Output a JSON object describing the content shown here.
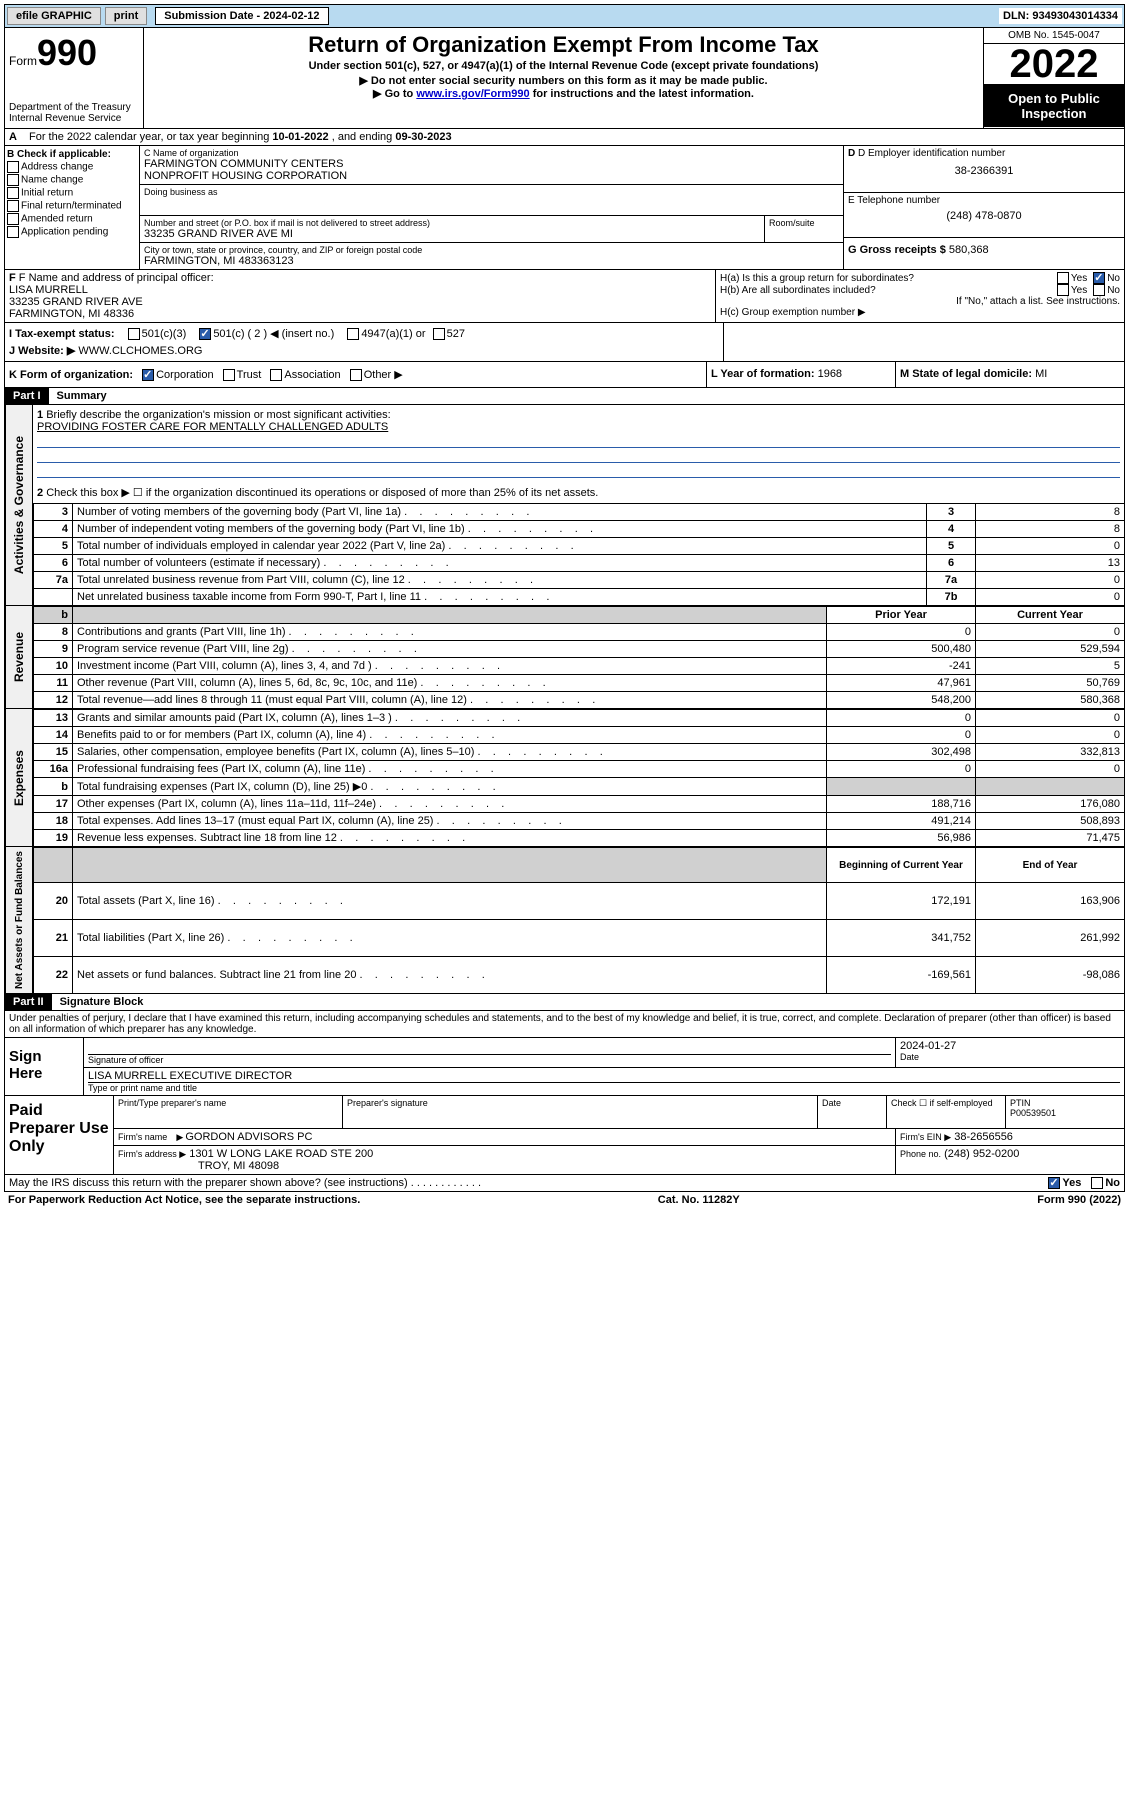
{
  "topbar": {
    "efile": "efile GRAPHIC",
    "print": "print",
    "sub_label": "Submission Date - 2024-02-12",
    "dln": "DLN: 93493043014334"
  },
  "header": {
    "form_word": "Form",
    "form_num": "990",
    "dept": "Department of the Treasury",
    "irs": "Internal Revenue Service",
    "title": "Return of Organization Exempt From Income Tax",
    "subtitle": "Under section 501(c), 527, or 4947(a)(1) of the Internal Revenue Code (except private foundations)",
    "note1": "▶ Do not enter social security numbers on this form as it may be made public.",
    "note2_pre": "▶ Go to ",
    "note2_link": "www.irs.gov/Form990",
    "note2_post": " for instructions and the latest information.",
    "omb": "OMB No. 1545-0047",
    "year": "2022",
    "open": "Open to Public Inspection"
  },
  "periodA": {
    "text_pre": "For the 2022 calendar year, or tax year beginning ",
    "begin": "10-01-2022",
    "mid": " , and ending ",
    "end": "09-30-2023"
  },
  "boxB": {
    "title": "B Check if applicable:",
    "items": [
      "Address change",
      "Name change",
      "Initial return",
      "Final return/terminated",
      "Amended return",
      "Application pending"
    ]
  },
  "boxC": {
    "label_name": "C Name of organization",
    "org1": "FARMINGTON COMMUNITY CENTERS",
    "org2": "NONPROFIT HOUSING CORPORATION",
    "dba": "Doing business as",
    "addr_label": "Number and street (or P.O. box if mail is not delivered to street address)",
    "room": "Room/suite",
    "addr": "33235 GRAND RIVER AVE MI",
    "city_label": "City or town, state or province, country, and ZIP or foreign postal code",
    "city": "FARMINGTON, MI  483363123"
  },
  "boxD": {
    "label": "D Employer identification number",
    "val": "38-2366391"
  },
  "boxE": {
    "label": "E Telephone number",
    "val": "(248) 478-0870"
  },
  "boxG": {
    "label": "G Gross receipts $",
    "val": "580,368"
  },
  "boxF": {
    "label": "F  Name and address of principal officer:",
    "name": "LISA MURRELL",
    "addr1": "33235 GRAND RIVER AVE",
    "addr2": "FARMINGTON, MI  48336"
  },
  "boxH": {
    "a": "H(a)  Is this a group return for subordinates?",
    "b": "H(b)  Are all subordinates included?",
    "note": "If \"No,\" attach a list. See instructions.",
    "c": "H(c)  Group exemption number ▶",
    "yes": "Yes",
    "no": "No"
  },
  "rowI": {
    "label": "I    Tax-exempt status:",
    "c3": "501(c)(3)",
    "c": "501(c) ( 2 ) ◀ (insert no.)",
    "a1": "4947(a)(1) or",
    "s527": "527"
  },
  "rowJ": {
    "label": "J    Website: ▶",
    "val": "WWW.CLCHOMES.ORG"
  },
  "rowK": {
    "label": "K Form of organization:",
    "corp": "Corporation",
    "trust": "Trust",
    "assoc": "Association",
    "other": "Other ▶"
  },
  "rowL": {
    "label": "L Year of formation:",
    "val": "1968"
  },
  "rowM": {
    "label": "M State of legal domicile:",
    "val": "MI"
  },
  "part1": {
    "header": "Part I",
    "title": "Summary",
    "q1": "Briefly describe the organization's mission or most significant activities:",
    "mission": "PROVIDING FOSTER CARE FOR MENTALLY CHALLENGED ADULTS",
    "q2": "Check this box ▶ ☐  if the organization discontinued its operations or disposed of more than 25% of its net assets.",
    "lines": [
      {
        "n": "3",
        "t": "Number of voting members of the governing body (Part VI, line 1a)",
        "box": "3",
        "v": "8"
      },
      {
        "n": "4",
        "t": "Number of independent voting members of the governing body (Part VI, line 1b)",
        "box": "4",
        "v": "8"
      },
      {
        "n": "5",
        "t": "Total number of individuals employed in calendar year 2022 (Part V, line 2a)",
        "box": "5",
        "v": "0"
      },
      {
        "n": "6",
        "t": "Total number of volunteers (estimate if necessary)",
        "box": "6",
        "v": "13"
      },
      {
        "n": "7a",
        "t": "Total unrelated business revenue from Part VIII, column (C), line 12",
        "box": "7a",
        "v": "0"
      },
      {
        "n": "",
        "t": "Net unrelated business taxable income from Form 990-T, Part I, line 11",
        "box": "7b",
        "v": "0"
      }
    ],
    "col_prior": "Prior Year",
    "col_curr": "Current Year",
    "rev": [
      {
        "n": "8",
        "t": "Contributions and grants (Part VIII, line 1h)",
        "p": "0",
        "c": "0"
      },
      {
        "n": "9",
        "t": "Program service revenue (Part VIII, line 2g)",
        "p": "500,480",
        "c": "529,594"
      },
      {
        "n": "10",
        "t": "Investment income (Part VIII, column (A), lines 3, 4, and 7d )",
        "p": "-241",
        "c": "5"
      },
      {
        "n": "11",
        "t": "Other revenue (Part VIII, column (A), lines 5, 6d, 8c, 9c, 10c, and 11e)",
        "p": "47,961",
        "c": "50,769"
      },
      {
        "n": "12",
        "t": "Total revenue—add lines 8 through 11 (must equal Part VIII, column (A), line 12)",
        "p": "548,200",
        "c": "580,368"
      }
    ],
    "exp": [
      {
        "n": "13",
        "t": "Grants and similar amounts paid (Part IX, column (A), lines 1–3 )",
        "p": "0",
        "c": "0"
      },
      {
        "n": "14",
        "t": "Benefits paid to or for members (Part IX, column (A), line 4)",
        "p": "0",
        "c": "0"
      },
      {
        "n": "15",
        "t": "Salaries, other compensation, employee benefits (Part IX, column (A), lines 5–10)",
        "p": "302,498",
        "c": "332,813"
      },
      {
        "n": "16a",
        "t": "Professional fundraising fees (Part IX, column (A), line 11e)",
        "p": "0",
        "c": "0"
      },
      {
        "n": "b",
        "t": "Total fundraising expenses (Part IX, column (D), line 25) ▶0",
        "p": "",
        "c": "",
        "shade": true
      },
      {
        "n": "17",
        "t": "Other expenses (Part IX, column (A), lines 11a–11d, 11f–24e)",
        "p": "188,716",
        "c": "176,080"
      },
      {
        "n": "18",
        "t": "Total expenses. Add lines 13–17 (must equal Part IX, column (A), line 25)",
        "p": "491,214",
        "c": "508,893"
      },
      {
        "n": "19",
        "t": "Revenue less expenses. Subtract line 18 from line 12",
        "p": "56,986",
        "c": "71,475"
      }
    ],
    "col_begin": "Beginning of Current Year",
    "col_end": "End of Year",
    "net": [
      {
        "n": "20",
        "t": "Total assets (Part X, line 16)",
        "p": "172,191",
        "c": "163,906"
      },
      {
        "n": "21",
        "t": "Total liabilities (Part X, line 26)",
        "p": "341,752",
        "c": "261,992"
      },
      {
        "n": "22",
        "t": "Net assets or fund balances. Subtract line 21 from line 20",
        "p": "-169,561",
        "c": "-98,086"
      }
    ],
    "side_ag": "Activities & Governance",
    "side_rev": "Revenue",
    "side_exp": "Expenses",
    "side_net": "Net Assets or Fund Balances"
  },
  "part2": {
    "header": "Part II",
    "title": "Signature Block",
    "decl": "Under penalties of perjury, I declare that I have examined this return, including accompanying schedules and statements, and to the best of my knowledge and belief, it is true, correct, and complete. Declaration of preparer (other than officer) is based on all information of which preparer has any knowledge.",
    "sign_here": "Sign Here",
    "sig_officer": "Signature of officer",
    "date": "Date",
    "date_val": "2024-01-27",
    "name_title": "LISA MURRELL  EXECUTIVE DIRECTOR",
    "type_name": "Type or print name and title",
    "paid": "Paid Preparer Use Only",
    "prep_name": "Print/Type preparer's name",
    "prep_sig": "Preparer's signature",
    "check_self": "Check ☐ if self-employed",
    "ptin_label": "PTIN",
    "ptin": "P00539501",
    "firm_name_l": "Firm's name",
    "firm_name": "GORDON ADVISORS PC",
    "firm_ein_l": "Firm's EIN ▶",
    "firm_ein": "38-2656556",
    "firm_addr_l": "Firm's address ▶",
    "firm_addr1": "1301 W LONG LAKE ROAD STE 200",
    "firm_addr2": "TROY, MI  48098",
    "phone_l": "Phone no.",
    "phone": "(248) 952-0200",
    "discuss": "May the IRS discuss this return with the preparer shown above? (see instructions)"
  },
  "footer": {
    "left": "For Paperwork Reduction Act Notice, see the separate instructions.",
    "mid": "Cat. No. 11282Y",
    "right": "Form 990 (2022)"
  }
}
